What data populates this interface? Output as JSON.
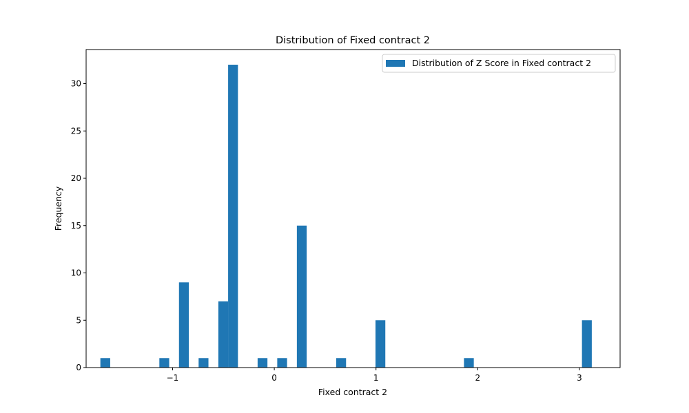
{
  "chart_data": {
    "type": "bar",
    "title": "Distribution of Fixed contract 2",
    "xlabel": "Fixed contract 2",
    "ylabel": "Frequency",
    "xlim": [
      -1.85,
      3.4
    ],
    "ylim": [
      0,
      33.6
    ],
    "xticks": [
      {
        "value": -1,
        "label": "−1"
      },
      {
        "value": 0,
        "label": "0"
      },
      {
        "value": 1,
        "label": "1"
      },
      {
        "value": 2,
        "label": "2"
      },
      {
        "value": 3,
        "label": "3"
      }
    ],
    "yticks": [
      {
        "value": 0,
        "label": "0"
      },
      {
        "value": 5,
        "label": "5"
      },
      {
        "value": 10,
        "label": "10"
      },
      {
        "value": 15,
        "label": "15"
      },
      {
        "value": 20,
        "label": "20"
      },
      {
        "value": 25,
        "label": "25"
      },
      {
        "value": 30,
        "label": "30"
      }
    ],
    "bin_width": 0.0966,
    "bars": [
      {
        "x0": -1.71,
        "value": 1
      },
      {
        "x0": -1.13,
        "value": 1
      },
      {
        "x0": -0.937,
        "value": 9
      },
      {
        "x0": -0.744,
        "value": 1
      },
      {
        "x0": -0.55,
        "value": 7
      },
      {
        "x0": -0.454,
        "value": 32
      },
      {
        "x0": -0.164,
        "value": 1
      },
      {
        "x0": 0.029,
        "value": 1
      },
      {
        "x0": 0.222,
        "value": 15
      },
      {
        "x0": 0.609,
        "value": 1
      },
      {
        "x0": 0.995,
        "value": 5
      },
      {
        "x0": 1.865,
        "value": 1
      },
      {
        "x0": 3.025,
        "value": 5
      }
    ],
    "series": [
      {
        "name": "Distribution of Z Score in Fixed contract 2",
        "color": "#1f77b4"
      }
    ],
    "grid": false,
    "legend_position": "top-right"
  }
}
